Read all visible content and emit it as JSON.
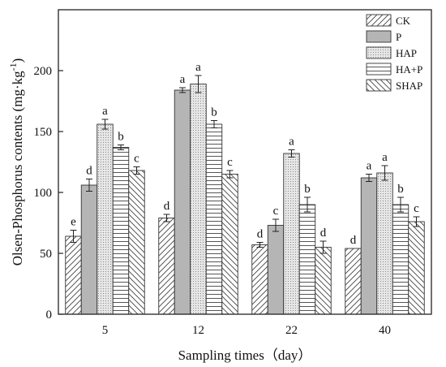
{
  "chart_data": {
    "type": "bar",
    "title": "",
    "xlabel": "Sampling times（day）",
    "ylabel": "Olsen-Phosphorus contents (mg·kg",
    "ylabel_sup": "-1",
    "ylabel_close": ")",
    "ylim": [
      0,
      250
    ],
    "yticks": [
      0,
      50,
      100,
      150,
      200
    ],
    "categories": [
      "5",
      "12",
      "22",
      "40"
    ],
    "legend_position": "top-right",
    "grid": false,
    "series": [
      {
        "name": "CK",
        "pattern": "diag-forward",
        "fill": "#ffffff",
        "values": [
          64,
          79,
          57,
          54
        ],
        "errors": [
          5,
          3,
          2,
          0
        ],
        "labels": [
          "e",
          "d",
          "d",
          "d"
        ]
      },
      {
        "name": "P",
        "pattern": "solid",
        "fill": "#b5b5b5",
        "values": [
          106,
          184,
          73,
          112
        ],
        "errors": [
          5,
          2,
          5,
          3
        ],
        "labels": [
          "d",
          "a",
          "c",
          "a"
        ]
      },
      {
        "name": "HAP",
        "pattern": "dots",
        "fill": "#e4e4e4",
        "values": [
          156,
          189,
          132,
          116
        ],
        "errors": [
          4,
          7,
          3,
          6
        ],
        "labels": [
          "a",
          "a",
          "a",
          "a"
        ]
      },
      {
        "name": "HA+P",
        "pattern": "horizontal",
        "fill": "#ffffff",
        "values": [
          137,
          156,
          90,
          90
        ],
        "errors": [
          2,
          3,
          6,
          6
        ],
        "labels": [
          "b",
          "b",
          "b",
          "b"
        ]
      },
      {
        "name": "SHAP",
        "pattern": "diag-back",
        "fill": "#ffffff",
        "values": [
          118,
          115,
          55,
          76
        ],
        "errors": [
          3,
          3,
          5,
          4
        ],
        "labels": [
          "c",
          "c",
          "d",
          "c"
        ]
      }
    ]
  }
}
